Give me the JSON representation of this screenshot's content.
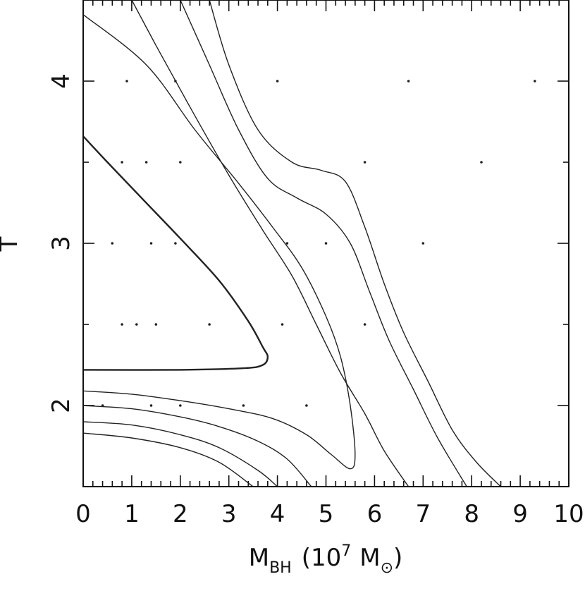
{
  "chart_data": {
    "type": "contour",
    "xlabel": {
      "main": "M",
      "sub": "BH",
      "paren_open": "(10",
      "exp": "7",
      "unit": "M",
      "unit_sub": "⊙",
      "paren_close": ")"
    },
    "ylabel": "T",
    "xlim": [
      0,
      10
    ],
    "ylim": [
      1.5,
      4.5
    ],
    "x_ticks": [
      "0",
      "1",
      "2",
      "3",
      "4",
      "5",
      "6",
      "7",
      "8",
      "9",
      "10"
    ],
    "y_ticks": [
      "2",
      "3",
      "4"
    ],
    "x_tick_values": [
      0,
      1,
      2,
      3,
      4,
      5,
      6,
      7,
      8,
      9,
      10
    ],
    "y_tick_values": [
      2,
      3,
      4
    ],
    "grid": false,
    "contours": [
      {
        "points": [
          [
            0,
            3.66
          ],
          [
            0.5,
            3.5
          ],
          [
            1.2,
            3.28
          ],
          [
            2,
            3.03
          ],
          [
            2.8,
            2.77
          ],
          [
            3.4,
            2.52
          ],
          [
            3.7,
            2.36
          ],
          [
            3.8,
            2.3
          ],
          [
            3.7,
            2.25
          ],
          [
            3.3,
            2.23
          ],
          [
            2,
            2.22
          ],
          [
            0,
            2.22
          ]
        ]
      },
      {
        "points": [
          [
            0,
            2.09
          ],
          [
            1,
            2.07
          ],
          [
            2,
            2.03
          ],
          [
            3,
            1.98
          ],
          [
            3.9,
            1.92
          ],
          [
            4.6,
            1.82
          ],
          [
            5.1,
            1.7
          ],
          [
            5.5,
            1.61
          ],
          [
            5.6,
            1.7
          ],
          [
            5.5,
            2.0
          ],
          [
            5.3,
            2.3
          ],
          [
            5.0,
            2.55
          ],
          [
            4.5,
            2.85
          ],
          [
            3.9,
            3.1
          ],
          [
            3.2,
            3.37
          ],
          [
            2.3,
            3.7
          ],
          [
            1.3,
            4.1
          ],
          [
            0,
            4.41
          ]
        ]
      },
      {
        "points": [
          [
            0,
            2.0
          ],
          [
            1,
            1.98
          ],
          [
            2,
            1.93
          ],
          [
            2.8,
            1.87
          ],
          [
            3.6,
            1.78
          ],
          [
            4.2,
            1.67
          ],
          [
            4.7,
            1.5
          ]
        ]
      },
      {
        "points": [
          [
            0,
            1.9
          ],
          [
            1,
            1.88
          ],
          [
            2,
            1.82
          ],
          [
            2.8,
            1.74
          ],
          [
            3.6,
            1.6
          ],
          [
            4.0,
            1.5
          ]
        ]
      },
      {
        "points": [
          [
            0,
            1.83
          ],
          [
            1,
            1.8
          ],
          [
            2,
            1.74
          ],
          [
            2.8,
            1.65
          ],
          [
            3.5,
            1.5
          ]
        ]
      },
      {
        "points": [
          [
            1,
            4.5
          ],
          [
            1.5,
            4.22
          ],
          [
            2.2,
            3.84
          ],
          [
            3.0,
            3.42
          ],
          [
            3.7,
            3.08
          ],
          [
            4.3,
            2.8
          ],
          [
            4.8,
            2.5
          ],
          [
            5.3,
            2.2
          ],
          [
            5.8,
            1.95
          ],
          [
            6.2,
            1.72
          ],
          [
            6.7,
            1.5
          ]
        ]
      },
      {
        "points": [
          [
            2,
            4.5
          ],
          [
            2.6,
            4.1
          ],
          [
            3.2,
            3.7
          ],
          [
            3.8,
            3.4
          ],
          [
            4.4,
            3.28
          ],
          [
            5.0,
            3.18
          ],
          [
            5.5,
            3.0
          ],
          [
            5.9,
            2.7
          ],
          [
            6.3,
            2.4
          ],
          [
            6.8,
            2.1
          ],
          [
            7.3,
            1.8
          ],
          [
            7.9,
            1.5
          ]
        ]
      },
      {
        "points": [
          [
            2.6,
            4.5
          ],
          [
            3.0,
            4.1
          ],
          [
            3.6,
            3.7
          ],
          [
            4.3,
            3.5
          ],
          [
            4.9,
            3.45
          ],
          [
            5.4,
            3.38
          ],
          [
            5.8,
            3.1
          ],
          [
            6.2,
            2.75
          ],
          [
            6.6,
            2.45
          ],
          [
            7.1,
            2.15
          ],
          [
            7.6,
            1.85
          ],
          [
            8.1,
            1.65
          ],
          [
            8.6,
            1.5
          ]
        ]
      }
    ],
    "dots": [
      [
        0.9,
        4.0
      ],
      [
        1.9,
        4.0
      ],
      [
        4.0,
        4.0
      ],
      [
        6.7,
        4.0
      ],
      [
        9.3,
        4.0
      ],
      [
        0.8,
        3.5
      ],
      [
        1.3,
        3.5
      ],
      [
        2.0,
        3.5
      ],
      [
        5.8,
        3.5
      ],
      [
        8.2,
        3.5
      ],
      [
        0.6,
        3.0
      ],
      [
        1.4,
        3.0
      ],
      [
        1.9,
        3.0
      ],
      [
        4.2,
        3.0
      ],
      [
        5.0,
        3.0
      ],
      [
        7.0,
        3.0
      ],
      [
        0.8,
        2.5
      ],
      [
        1.1,
        2.5
      ],
      [
        1.5,
        2.5
      ],
      [
        2.6,
        2.5
      ],
      [
        4.1,
        2.5
      ],
      [
        5.8,
        2.5
      ],
      [
        0.4,
        2.0
      ],
      [
        1.4,
        2.0
      ],
      [
        2.0,
        2.0
      ],
      [
        3.3,
        2.0
      ],
      [
        4.6,
        2.0
      ]
    ]
  }
}
